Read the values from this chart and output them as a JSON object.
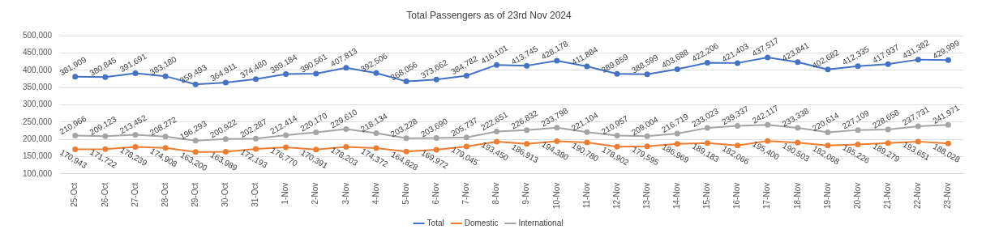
{
  "chart_data": {
    "type": "line",
    "title": "Total Passengers as of 23rd Nov 2024",
    "categories": [
      "25-Oct",
      "26-Oct",
      "27-Oct",
      "28-Oct",
      "29-Oct",
      "30-Oct",
      "31-Oct",
      "1-Nov",
      "2-Nov",
      "3-Nov",
      "4-Nov",
      "5-Nov",
      "6-Nov",
      "7-Nov",
      "8-Nov",
      "9-Nov",
      "10-Nov",
      "11-Nov",
      "12-Nov",
      "13-Nov",
      "14-Nov",
      "15-Nov",
      "16-Nov",
      "17-Nov",
      "18-Nov",
      "19-Nov",
      "20-Nov",
      "21-Nov",
      "22-Nov",
      "23-Nov"
    ],
    "series": [
      {
        "name": "Total",
        "color": "#4472c4",
        "values": [
          381909,
          380845,
          391691,
          383180,
          359493,
          364911,
          374480,
          389184,
          390561,
          407813,
          392506,
          368056,
          373662,
          384782,
          416101,
          413745,
          428178,
          411884,
          389859,
          388599,
          403688,
          422206,
          421403,
          437517,
          423841,
          402682,
          412335,
          417937,
          431382,
          429999
        ],
        "value_labels": [
          "381,909",
          "380,845",
          "391,691",
          "383,180",
          "359,493",
          "364,911",
          "374,480",
          "389,184",
          "390,561",
          "407,813",
          "392,506",
          "368,056",
          "373,662",
          "384,782",
          "416,101",
          "413,745",
          "428,178",
          "411,884",
          "389,859",
          "388,599",
          "403,688",
          "422,206",
          "421,403",
          "437,517",
          "423,841",
          "402,682",
          "412,335",
          "417,937",
          "431,382",
          "429,999"
        ]
      },
      {
        "name": "Domestic",
        "color": "#ed7d31",
        "values": [
          170943,
          171722,
          178239,
          174908,
          163200,
          163989,
          172193,
          176770,
          170391,
          178203,
          174372,
          164828,
          169972,
          179045,
          193450,
          186913,
          194380,
          190780,
          178902,
          179595,
          186969,
          189183,
          182066,
          195400,
          190503,
          182068,
          185226,
          189279,
          193651,
          188028
        ],
        "value_labels": [
          "170,943",
          "171,722",
          "178,239",
          "174,908",
          "163,200",
          "163,989",
          "172,193",
          "176,770",
          "170,391",
          "178,203",
          "174,372",
          "164,828",
          "169,972",
          "179,045",
          "193,450",
          "186,913",
          "194,380",
          "190,780",
          "178,902",
          "179,595",
          "186,969",
          "189,183",
          "182,066",
          "195,400",
          "190,503",
          "182,068",
          "185,226",
          "189,279",
          "193,651",
          "188,028"
        ]
      },
      {
        "name": "International",
        "color": "#a5a5a5",
        "values": [
          210966,
          209123,
          213452,
          208272,
          196293,
          200922,
          202287,
          212414,
          220170,
          229610,
          218134,
          203228,
          203690,
          205737,
          222651,
          226832,
          233798,
          221104,
          210957,
          209004,
          216719,
          233023,
          239337,
          242117,
          233338,
          220614,
          227109,
          228658,
          237731,
          241971
        ],
        "value_labels": [
          "210,966",
          "209,123",
          "213,452",
          "208,272",
          "196,293",
          "200,922",
          "202,287",
          "212,414",
          "220,170",
          "229,610",
          "218,134",
          "203,228",
          "203,690",
          "205,737",
          "222,651",
          "226,832",
          "233,798",
          "221,104",
          "210,957",
          "209,004",
          "216,719",
          "233,023",
          "239,337",
          "242,117",
          "233,338",
          "220,614",
          "227,109",
          "228,658",
          "237,731",
          "241,971"
        ]
      }
    ],
    "ylim": [
      100000,
      500000
    ],
    "yticks": [
      {
        "value": 100000,
        "label": "100,000"
      },
      {
        "value": 150000,
        "label": "150,000"
      },
      {
        "value": 200000,
        "label": "200,000"
      },
      {
        "value": 250000,
        "label": "250,000"
      },
      {
        "value": 300000,
        "label": "300,000"
      },
      {
        "value": 350000,
        "label": "350,000"
      },
      {
        "value": 400000,
        "label": "400,000"
      },
      {
        "value": 450000,
        "label": "450,000"
      },
      {
        "value": 500000,
        "label": "500,000"
      }
    ],
    "grid": "y",
    "legend": "bottom",
    "marker": "circle",
    "line_style": "solid"
  }
}
